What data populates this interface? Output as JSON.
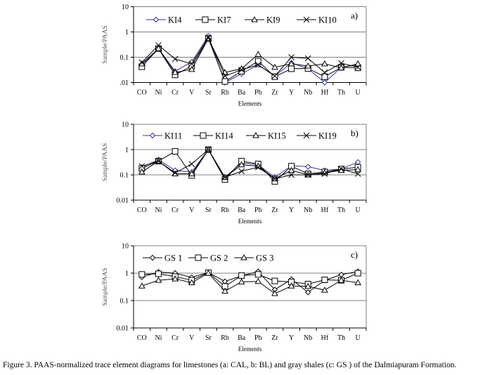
{
  "caption": "Figure 3. PAAS-normalized trace element diagrams for limestones (a: CAL, b: BL) and gray shales (c: GS ) of the Dalmiapuram Formation.",
  "chart_data": [
    {
      "type": "line",
      "panel_label": "a)",
      "xlabel": "Elements",
      "ylabel": "Sample/PAAS",
      "yscale": "log",
      "ylim": [
        0.01,
        10
      ],
      "ytick_labels": [
        "10",
        "1",
        "0.1",
        ".01"
      ],
      "grid": true,
      "legend_position": "top",
      "categories": [
        "CO",
        "Ni",
        "Cr",
        "V",
        "Sr",
        "Rb",
        "Ba",
        "Pb",
        "Zr",
        "Y",
        "Nb",
        "Hf",
        "Th",
        "U"
      ],
      "series": [
        {
          "name": "KI4",
          "marker": "diamond",
          "color": "#333399",
          "values": [
            0.05,
            0.22,
            0.028,
            0.065,
            0.7,
            0.01,
            0.022,
            0.05,
            0.018,
            0.06,
            0.035,
            0.01,
            0.04,
            0.05
          ]
        },
        {
          "name": "KI7",
          "marker": "square",
          "color": "#000000",
          "values": [
            0.042,
            0.22,
            0.02,
            0.045,
            0.55,
            0.011,
            0.028,
            0.07,
            0.017,
            0.035,
            0.036,
            0.017,
            0.04,
            0.038
          ]
        },
        {
          "name": "KI9",
          "marker": "triangle",
          "color": "#000000",
          "values": [
            0.055,
            0.22,
            0.025,
            0.033,
            0.55,
            0.025,
            0.035,
            0.13,
            0.04,
            0.055,
            0.045,
            0.055,
            0.038,
            0.055
          ]
        },
        {
          "name": "KI10",
          "marker": "x",
          "color": "#000000",
          "values": [
            0.062,
            0.3,
            0.085,
            0.055,
            0.6,
            0.018,
            0.032,
            0.05,
            0.018,
            0.1,
            0.09,
            0.025,
            0.058,
            0.04
          ]
        }
      ]
    },
    {
      "type": "line",
      "panel_label": "b)",
      "xlabel": "Elements",
      "ylabel": "Sample/PAAS",
      "yscale": "log",
      "ylim": [
        0.01,
        10
      ],
      "ytick_labels": [
        "10",
        "1",
        "0.1",
        "0.01"
      ],
      "grid": true,
      "legend_position": "top",
      "categories": [
        "CO",
        "Ni",
        "Cr",
        "V",
        "Sr",
        "Rb",
        "Ba",
        "Pb",
        "Zr",
        "Y",
        "Nb",
        "Hf",
        "Th",
        "U"
      ],
      "series": [
        {
          "name": "KI11",
          "marker": "diamond",
          "color": "#333399",
          "values": [
            0.2,
            0.4,
            0.15,
            0.13,
            1.0,
            0.08,
            0.3,
            0.25,
            0.08,
            0.23,
            0.21,
            0.15,
            0.17,
            0.32
          ]
        },
        {
          "name": "KI14",
          "marker": "square",
          "color": "#000000",
          "values": [
            0.18,
            0.35,
            0.85,
            0.095,
            1.0,
            0.065,
            0.35,
            0.27,
            0.055,
            0.22,
            0.11,
            0.13,
            0.17,
            0.2
          ]
        },
        {
          "name": "KI15",
          "marker": "triangle",
          "color": "#000000",
          "values": [
            0.13,
            0.35,
            0.11,
            0.11,
            1.0,
            0.08,
            0.25,
            0.22,
            0.07,
            0.15,
            0.1,
            0.12,
            0.15,
            0.16
          ]
        },
        {
          "name": "KI19",
          "marker": "x",
          "color": "#000000",
          "values": [
            0.22,
            0.35,
            0.12,
            0.27,
            1.0,
            0.08,
            0.14,
            0.2,
            0.07,
            0.1,
            0.1,
            0.11,
            0.17,
            0.11
          ]
        }
      ]
    },
    {
      "type": "line",
      "panel_label": "c)",
      "xlabel": "Elements",
      "ylabel": "Sample/PAAS",
      "yscale": "log",
      "ylim": [
        0.01,
        10
      ],
      "ytick_labels": [
        "10",
        "1",
        "0.1",
        "0.01"
      ],
      "grid": true,
      "legend_position": "top",
      "categories": [
        "CO",
        "Ni",
        "Cr",
        "V",
        "Sr",
        "Rb",
        "Ba",
        "Pb",
        "Zr",
        "Y",
        "Nb",
        "Hf",
        "Th",
        "U"
      ],
      "series": [
        {
          "name": "GS 1",
          "marker": "diamond",
          "color": "#000000",
          "values": [
            0.72,
            1.1,
            1.0,
            0.7,
            1.05,
            0.5,
            0.8,
            1.15,
            0.25,
            0.6,
            0.2,
            0.55,
            0.88,
            1.15
          ]
        },
        {
          "name": "GS 2",
          "marker": "square",
          "color": "#000000",
          "values": [
            0.9,
            0.95,
            0.75,
            0.55,
            1.05,
            0.33,
            0.82,
            0.9,
            0.52,
            0.48,
            0.4,
            0.57,
            0.55,
            1.0
          ]
        },
        {
          "name": "GS 3",
          "marker": "triangle",
          "color": "#000000",
          "values": [
            0.34,
            0.55,
            0.62,
            0.45,
            1.0,
            0.22,
            0.48,
            0.5,
            0.18,
            0.34,
            0.33,
            0.24,
            0.55,
            0.45
          ]
        }
      ]
    }
  ]
}
